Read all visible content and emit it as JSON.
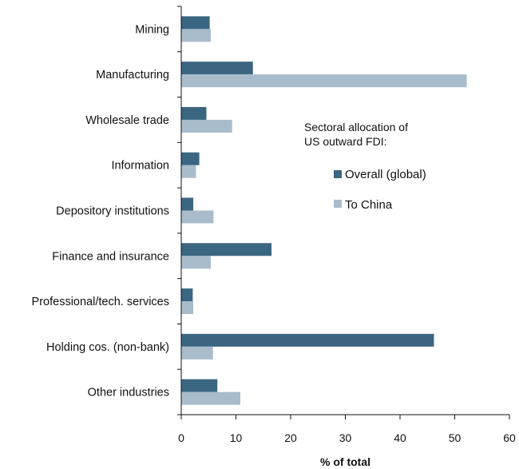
{
  "chart_data": {
    "type": "bar",
    "orientation": "horizontal",
    "categories": [
      "Mining",
      "Manufacturing",
      "Wholesale trade",
      "Information",
      "Depository institutions",
      "Finance and insurance",
      "Professional/tech. services",
      "Holding cos. (non-bank)",
      "Other industries"
    ],
    "series": [
      {
        "name": "Overall (global)",
        "color": "#3b6682",
        "values": [
          5.2,
          13.1,
          4.6,
          3.3,
          2.2,
          16.5,
          2.1,
          46.2,
          6.6
        ]
      },
      {
        "name": "To China",
        "color": "#a9bccb",
        "values": [
          5.4,
          52.2,
          9.3,
          2.7,
          5.9,
          5.4,
          2.2,
          5.8,
          10.8
        ]
      }
    ],
    "xlabel": "% of total",
    "xlim": [
      0,
      60
    ],
    "xticks": [
      0,
      10,
      20,
      30,
      40,
      50,
      60
    ],
    "legend_title_lines": [
      "Sectoral allocation of",
      "US outward FDI:"
    ],
    "legend_position": "right",
    "grid": false
  }
}
